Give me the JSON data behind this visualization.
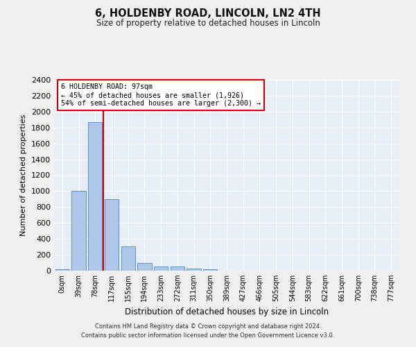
{
  "title": "6, HOLDENBY ROAD, LINCOLN, LN2 4TH",
  "subtitle": "Size of property relative to detached houses in Lincoln",
  "xlabel": "Distribution of detached houses by size in Lincoln",
  "ylabel": "Number of detached properties",
  "categories": [
    "0sqm",
    "39sqm",
    "78sqm",
    "117sqm",
    "155sqm",
    "194sqm",
    "233sqm",
    "272sqm",
    "311sqm",
    "350sqm",
    "389sqm",
    "427sqm",
    "466sqm",
    "505sqm",
    "544sqm",
    "583sqm",
    "622sqm",
    "661sqm",
    "700sqm",
    "738sqm",
    "777sqm"
  ],
  "bar_values": [
    20,
    1005,
    1870,
    900,
    305,
    100,
    50,
    50,
    30,
    20,
    0,
    0,
    0,
    0,
    0,
    0,
    0,
    0,
    0,
    0,
    0
  ],
  "bar_color": "#aec6e8",
  "bar_edge_color": "#5b8fc4",
  "background_color": "#e8eef8",
  "fig_background_color": "#f0f0f0",
  "grid_color": "#ffffff",
  "ylim": [
    0,
    2400
  ],
  "yticks": [
    0,
    200,
    400,
    600,
    800,
    1000,
    1200,
    1400,
    1600,
    1800,
    2000,
    2200,
    2400
  ],
  "property_size": 97,
  "red_line_color": "#cc0000",
  "annotation_line1": "6 HOLDENBY ROAD: 97sqm",
  "annotation_line2": "← 45% of detached houses are smaller (1,926)",
  "annotation_line3": "54% of semi-detached houses are larger (2,300) →",
  "annotation_box_color": "#cc0000",
  "footer_line1": "Contains HM Land Registry data © Crown copyright and database right 2024.",
  "footer_line2": "Contains public sector information licensed under the Open Government Licence v3.0."
}
